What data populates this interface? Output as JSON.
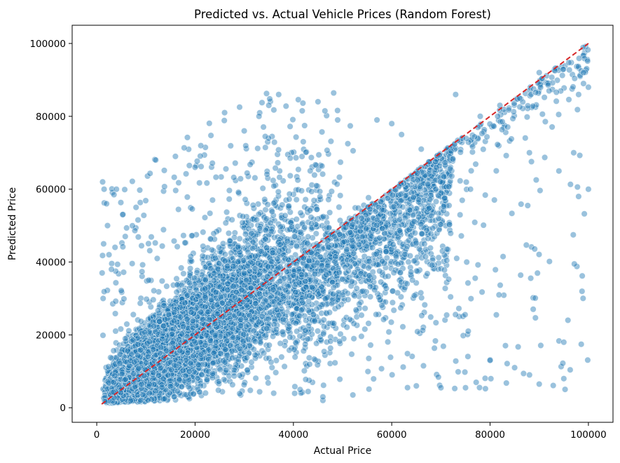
{
  "chart_data": {
    "type": "scatter",
    "title": "Predicted vs. Actual Vehicle Prices (Random Forest)",
    "xlabel": "Actual Price",
    "ylabel": "Predicted Price",
    "xlim": [
      -5000,
      105000
    ],
    "ylim": [
      -4000,
      105000
    ],
    "xticks": [
      0,
      20000,
      40000,
      60000,
      80000,
      100000
    ],
    "yticks": [
      0,
      20000,
      40000,
      60000,
      80000,
      100000
    ],
    "xtick_labels": [
      "0",
      "20000",
      "40000",
      "60000",
      "80000",
      "100000"
    ],
    "ytick_labels": [
      "0",
      "20000",
      "40000",
      "60000",
      "80000",
      "100000"
    ],
    "grid": false,
    "point_color": "#1f77b4",
    "point_edge_color": "#ffffff",
    "point_alpha": 0.45,
    "reference_line": {
      "x": [
        1000,
        100000
      ],
      "y": [
        1000,
        100000
      ],
      "color": "#d62728",
      "style": "dashed"
    },
    "series": [
      {
        "values_summary": "approx 9000 points; dense cloud concentrated at actual 1000-60000, predicted 1000-55000, trending along y=x",
        "x": [
          1200,
          1500,
          2000,
          2500,
          3000,
          1100,
          1300,
          4000,
          1400,
          2200,
          8000,
          12000,
          16000,
          20000,
          26000,
          30000,
          33000,
          35000,
          37000,
          45000,
          46000,
          49000,
          57000,
          60000,
          62000,
          66000,
          73000,
          78000,
          82000,
          86000,
          88000,
          90000,
          92000,
          94000,
          95000,
          97000,
          98000,
          99000,
          100000,
          100000,
          99000,
          98000,
          95000,
          90000,
          85000,
          80000,
          75000,
          70000,
          65000,
          46000,
          36000
        ],
        "y": [
          62000,
          60000,
          56000,
          42000,
          38000,
          37000,
          30000,
          60000,
          45000,
          50000,
          55000,
          68000,
          69000,
          66000,
          81000,
          76000,
          80000,
          83000,
          86000,
          84000,
          2000,
          79000,
          79000,
          78000,
          75000,
          71000,
          86000,
          80000,
          83000,
          85000,
          70000,
          92000,
          87000,
          65000,
          8000,
          70000,
          86000,
          92000,
          88000,
          60000,
          89000,
          58000,
          18000,
          6500,
          11000,
          13000,
          5500,
          5500,
          6000,
          3000,
          4000
        ]
      }
    ]
  }
}
